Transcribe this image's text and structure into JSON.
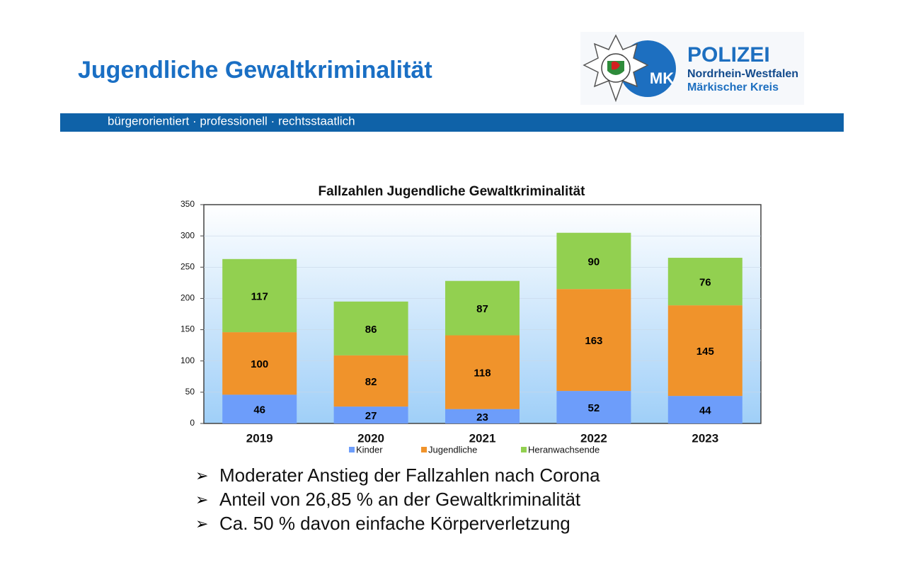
{
  "header": {
    "title": "Jugendliche Gewaltkriminalität",
    "tagline": "bürgerorientiert · professionell · rechtsstaatlich",
    "logo": {
      "badge": "MK",
      "name": "POLIZEI",
      "line1": "Nordrhein-Westfalen",
      "line2": "Märkischer Kreis"
    }
  },
  "chart_data": {
    "type": "stacked_bar",
    "title": "Fallzahlen Jugendliche Gewaltkriminalität",
    "categories": [
      "2019",
      "2020",
      "2021",
      "2022",
      "2023"
    ],
    "series": [
      {
        "name": "Kinder",
        "color": "#6d9dfa",
        "values": [
          46,
          27,
          23,
          52,
          44
        ]
      },
      {
        "name": "Jugendliche",
        "color": "#f0932b",
        "values": [
          100,
          82,
          118,
          163,
          145
        ]
      },
      {
        "name": "Heranwachsende",
        "color": "#92d050",
        "values": [
          117,
          86,
          87,
          90,
          76
        ]
      }
    ],
    "ylim": [
      0,
      350
    ],
    "yticks": [
      0,
      50,
      100,
      150,
      200,
      250,
      300,
      350
    ],
    "grid": true,
    "legend": "bottom"
  },
  "bullets": [
    "Moderater Anstieg der Fallzahlen nach Corona",
    "Anteil von 26,85 % an der Gewaltkriminalität",
    "Ca. 50 % davon einfache Körperverletzung"
  ]
}
